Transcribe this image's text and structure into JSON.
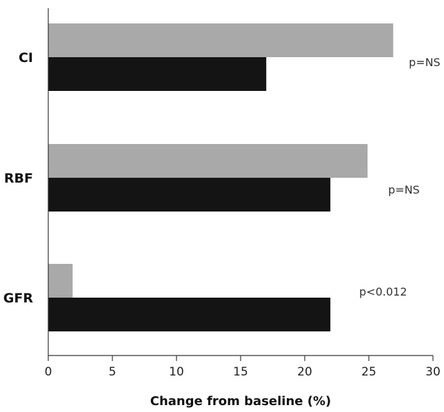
{
  "chart_data": {
    "type": "bar",
    "orientation": "horizontal",
    "categories": [
      "CI",
      "RBF",
      "GFR"
    ],
    "series": [
      {
        "color": "#a8a9a8",
        "values": [
          26.9,
          24.9,
          1.9
        ]
      },
      {
        "color": "#141414",
        "values": [
          17.0,
          22.0,
          22.0
        ]
      }
    ],
    "annotations": [
      "p=NS",
      "p=NS",
      "p<0.012"
    ],
    "xlabel": "Change from baseline (%)",
    "ylabel": "",
    "xlim": [
      0,
      30
    ],
    "xticks": [
      0,
      5,
      10,
      15,
      20,
      25,
      30
    ],
    "grid": false,
    "legend": "none"
  }
}
